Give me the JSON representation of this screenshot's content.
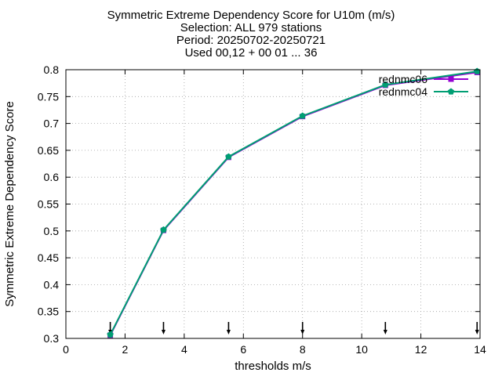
{
  "chart_data": {
    "type": "line",
    "title_lines": [
      "Symmetric Extreme Dependency Score  for U10m (m/s)",
      "Selection: ALL    979 stations",
      "Period: 20250702-20250721",
      "Used 00,12 + 00 01 ... 36"
    ],
    "xlabel": "thresholds m/s",
    "ylabel": "Symmetric Extreme Dependency Score",
    "xlim": [
      0,
      14
    ],
    "ylim": [
      0.3,
      0.8
    ],
    "x_ticks": [
      0,
      2,
      4,
      6,
      8,
      10,
      12,
      14
    ],
    "y_ticks": [
      0.3,
      0.35,
      0.4,
      0.45,
      0.5,
      0.55,
      0.6,
      0.65,
      0.7,
      0.75,
      0.8
    ],
    "grid": true,
    "legend_position": "top-right",
    "x": [
      1.5,
      3.3,
      5.5,
      8.0,
      10.8,
      13.9
    ],
    "series": [
      {
        "name": "rednmc06",
        "color": "#9400d3",
        "marker": "square",
        "values": [
          0.306,
          0.501,
          0.637,
          0.713,
          0.771,
          0.795
        ]
      },
      {
        "name": "rednmc04",
        "color": "#009e73",
        "marker": "pentagon",
        "values": [
          0.307,
          0.502,
          0.638,
          0.714,
          0.772,
          0.797
        ]
      }
    ],
    "threshold_arrows_x": [
      1.5,
      3.3,
      5.5,
      8.0,
      10.8,
      13.9
    ]
  }
}
